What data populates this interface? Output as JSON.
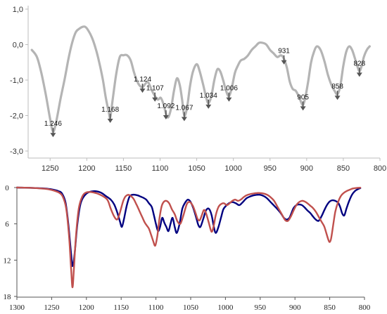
{
  "chart_data": [
    {
      "type": "line",
      "title": "",
      "xlabel": "",
      "ylabel": "",
      "x_reversed": true,
      "xlim": [
        1280,
        800
      ],
      "ylim": [
        -3.0,
        1.0
      ],
      "xticks": [
        1250,
        1200,
        1150,
        1100,
        1050,
        1000,
        950,
        900,
        850,
        800
      ],
      "yticks": [
        1.0,
        0.0,
        -1.0,
        -2.0,
        -3.0
      ],
      "ytick_labels": [
        "1,0",
        "0,0",
        "-1,0",
        "-2,0",
        "-3,0"
      ],
      "grid": false,
      "colors": {
        "line": "#b4b4b4",
        "arrow": "#555555"
      },
      "series": [
        {
          "x": [
            1275,
            1268,
            1262,
            1256,
            1250,
            1246,
            1242,
            1236,
            1230,
            1225,
            1220,
            1215,
            1210,
            1206,
            1202,
            1198,
            1193,
            1188,
            1183,
            1178,
            1174,
            1170,
            1168,
            1165,
            1160,
            1155,
            1150,
            1145,
            1140,
            1136,
            1132,
            1128,
            1124,
            1120,
            1117,
            1114,
            1111,
            1107,
            1103,
            1099,
            1095,
            1092,
            1089,
            1085,
            1081,
            1077,
            1073,
            1070,
            1067,
            1063,
            1059,
            1055,
            1050,
            1046,
            1041,
            1037,
            1034,
            1030,
            1026,
            1022,
            1018,
            1014,
            1010,
            1006,
            1002,
            998,
            994,
            990,
            985,
            980,
            975,
            970,
            965,
            960,
            955,
            950,
            945,
            940,
            935,
            931,
            927,
            923,
            919,
            915,
            911,
            908,
            905,
            902,
            898,
            894,
            890,
            886,
            881,
            876,
            871,
            866,
            862,
            858,
            854,
            850,
            846,
            842,
            838,
            834,
            831,
            828,
            825,
            822,
            818,
            814
          ],
          "values": [
            -0.15,
            -0.35,
            -0.8,
            -1.4,
            -2.1,
            -2.45,
            -2.2,
            -1.55,
            -0.95,
            -0.4,
            0.05,
            0.35,
            0.45,
            0.5,
            0.5,
            0.4,
            0.2,
            -0.1,
            -0.5,
            -1.0,
            -1.5,
            -1.9,
            -2.05,
            -1.6,
            -0.85,
            -0.35,
            -0.3,
            -0.3,
            -0.45,
            -0.75,
            -1.0,
            -1.15,
            -1.2,
            -1.1,
            -1.05,
            -1.15,
            -1.3,
            -1.45,
            -1.55,
            -1.5,
            -1.7,
            -1.95,
            -2.05,
            -1.8,
            -1.3,
            -0.95,
            -1.15,
            -1.55,
            -2.0,
            -1.75,
            -1.15,
            -0.75,
            -0.55,
            -0.75,
            -1.15,
            -1.5,
            -1.65,
            -1.45,
            -1.0,
            -0.7,
            -0.75,
            -1.0,
            -1.3,
            -1.45,
            -1.2,
            -0.8,
            -0.6,
            -0.45,
            -0.4,
            -0.3,
            -0.15,
            -0.05,
            0.05,
            0.05,
            0.0,
            -0.15,
            -0.25,
            -0.35,
            -0.3,
            -0.4,
            -0.65,
            -1.05,
            -1.25,
            -1.3,
            -1.45,
            -1.6,
            -1.7,
            -1.5,
            -1.05,
            -0.5,
            -0.2,
            -0.05,
            -0.15,
            -0.45,
            -0.85,
            -1.15,
            -1.3,
            -1.4,
            -1.15,
            -0.6,
            -0.2,
            -0.05,
            -0.15,
            -0.4,
            -0.6,
            -0.75,
            -0.6,
            -0.35,
            -0.15,
            -0.05
          ]
        }
      ],
      "annotations": [
        {
          "text": "1.246",
          "x": 1246,
          "y": -2.45
        },
        {
          "text": "1.168",
          "x": 1168,
          "y": -2.05
        },
        {
          "text": "1.124",
          "x": 1124,
          "y": -1.2
        },
        {
          "text": "1.107",
          "x": 1107,
          "y": -1.45
        },
        {
          "text": "1.092",
          "x": 1092,
          "y": -1.95
        },
        {
          "text": "1.067",
          "x": 1067,
          "y": -2.0
        },
        {
          "text": "1.034",
          "x": 1034,
          "y": -1.65
        },
        {
          "text": "1.006",
          "x": 1006,
          "y": -1.45
        },
        {
          "text": "931",
          "x": 931,
          "y": -0.4
        },
        {
          "text": "905",
          "x": 905,
          "y": -1.7
        },
        {
          "text": "858",
          "x": 858,
          "y": -1.4
        },
        {
          "text": "828",
          "x": 828,
          "y": -0.75
        }
      ]
    },
    {
      "type": "line",
      "title": "",
      "xlabel": "",
      "ylabel": "",
      "x_reversed": true,
      "y_reversed": true,
      "xlim": [
        1300,
        800
      ],
      "ylim": [
        0,
        18
      ],
      "xticks": [
        1300,
        1250,
        1200,
        1150,
        1100,
        1050,
        1000,
        950,
        900,
        850,
        800
      ],
      "yticks": [
        0,
        6,
        12,
        18
      ],
      "grid": false,
      "series": [
        {
          "color": "#000080",
          "x": [
            1300,
            1280,
            1260,
            1250,
            1240,
            1235,
            1230,
            1226,
            1222,
            1220,
            1217,
            1213,
            1208,
            1200,
            1190,
            1180,
            1172,
            1165,
            1160,
            1156,
            1152,
            1149,
            1146,
            1142,
            1138,
            1134,
            1130,
            1126,
            1122,
            1118,
            1114,
            1110,
            1106,
            1103,
            1100,
            1097,
            1094,
            1091,
            1088,
            1085,
            1082,
            1079,
            1076,
            1073,
            1070,
            1066,
            1062,
            1058,
            1054,
            1050,
            1046,
            1042,
            1039,
            1036,
            1032,
            1028,
            1024,
            1020,
            1017,
            1014,
            1010,
            1006,
            1003,
            999,
            995,
            990,
            985,
            980,
            975,
            970,
            965,
            960,
            955,
            950,
            945,
            940,
            935,
            930,
            925,
            920,
            916,
            912,
            908,
            905,
            902,
            898,
            894,
            890,
            886,
            882,
            878,
            874,
            870,
            866,
            862,
            858,
            854,
            850,
            846,
            842,
            838,
            835,
            832,
            829,
            826,
            822,
            818,
            814,
            810,
            806
          ],
          "values": [
            0,
            0.05,
            0.15,
            0.3,
            0.6,
            1.0,
            2.5,
            6.0,
            11.0,
            13.0,
            11.0,
            6.0,
            2.5,
            1.0,
            0.6,
            0.8,
            1.4,
            2.0,
            2.8,
            4.0,
            5.5,
            6.5,
            5.2,
            3.0,
            1.5,
            1.2,
            1.2,
            1.3,
            1.5,
            1.7,
            2.0,
            2.6,
            3.2,
            4.5,
            6.0,
            7.2,
            6.5,
            5.0,
            5.8,
            6.5,
            7.2,
            6.0,
            5.0,
            6.5,
            7.5,
            6.0,
            3.5,
            2.5,
            2.0,
            2.4,
            3.5,
            5.0,
            6.2,
            6.5,
            5.2,
            3.8,
            3.5,
            4.5,
            6.3,
            7.5,
            6.5,
            4.8,
            3.6,
            3.0,
            2.6,
            2.4,
            2.6,
            2.9,
            2.4,
            1.8,
            1.5,
            1.3,
            1.2,
            1.2,
            1.4,
            1.8,
            2.4,
            3.0,
            3.6,
            4.3,
            5.0,
            5.3,
            5.0,
            4.2,
            3.4,
            2.9,
            2.8,
            2.9,
            3.3,
            3.8,
            4.2,
            4.8,
            5.3,
            5.5,
            4.8,
            3.8,
            2.9,
            2.3,
            2.1,
            2.2,
            2.5,
            3.2,
            4.3,
            4.6,
            3.5,
            2.2,
            1.2,
            0.6,
            0.3,
            0.1
          ]
        },
        {
          "color": "#c0504d",
          "x": [
            1300,
            1280,
            1260,
            1250,
            1240,
            1234,
            1229,
            1225,
            1222,
            1220,
            1218,
            1215,
            1211,
            1206,
            1200,
            1190,
            1180,
            1170,
            1165,
            1160,
            1156,
            1153,
            1150,
            1147,
            1144,
            1140,
            1136,
            1132,
            1128,
            1124,
            1120,
            1116,
            1113,
            1110,
            1107,
            1104,
            1101,
            1098,
            1095,
            1092,
            1089,
            1085,
            1081,
            1077,
            1073,
            1069,
            1065,
            1061,
            1058,
            1055,
            1051,
            1047,
            1043,
            1040,
            1037,
            1034,
            1031,
            1028,
            1024,
            1020,
            1017,
            1014,
            1010,
            1006,
            1002,
            998,
            994,
            990,
            986,
            982,
            978,
            974,
            970,
            965,
            960,
            955,
            950,
            945,
            940,
            935,
            930,
            926,
            922,
            918,
            914,
            910,
            906,
            902,
            898,
            894,
            890,
            886,
            882,
            878,
            874,
            870,
            866,
            862,
            858,
            855,
            852,
            850,
            848,
            845,
            842,
            838,
            834,
            830,
            826,
            822,
            818,
            814,
            810,
            806
          ],
          "values": [
            0,
            0.05,
            0.2,
            0.4,
            0.8,
            1.5,
            3.5,
            8.0,
            13.5,
            16.5,
            13.5,
            8.0,
            3.5,
            1.5,
            0.8,
            0.8,
            1.2,
            2.0,
            3.5,
            4.8,
            5.3,
            4.6,
            3.4,
            2.2,
            1.5,
            1.2,
            1.4,
            1.9,
            2.8,
            3.8,
            4.8,
            5.8,
            6.3,
            6.8,
            7.8,
            8.8,
            9.6,
            8.0,
            5.2,
            3.2,
            2.4,
            2.2,
            2.6,
            3.6,
            4.4,
            5.6,
            6.0,
            4.8,
            3.6,
            2.6,
            2.4,
            3.0,
            4.2,
            5.2,
            5.4,
            4.6,
            3.7,
            4.2,
            5.8,
            7.3,
            6.4,
            4.6,
            3.2,
            2.7,
            2.6,
            2.9,
            2.6,
            2.2,
            2.0,
            2.2,
            2.0,
            1.6,
            1.3,
            1.1,
            1.0,
            0.9,
            0.9,
            1.0,
            1.2,
            1.6,
            2.2,
            3.0,
            3.8,
            4.6,
            5.4,
            5.5,
            4.8,
            3.8,
            2.9,
            2.4,
            2.2,
            2.3,
            2.6,
            3.0,
            3.4,
            4.0,
            4.8,
            5.6,
            6.4,
            7.5,
            8.6,
            9.0,
            8.4,
            6.2,
            4.0,
            2.4,
            1.4,
            0.9,
            0.6,
            0.4,
            0.2,
            0.1,
            0.05,
            0.02
          ]
        }
      ]
    }
  ]
}
